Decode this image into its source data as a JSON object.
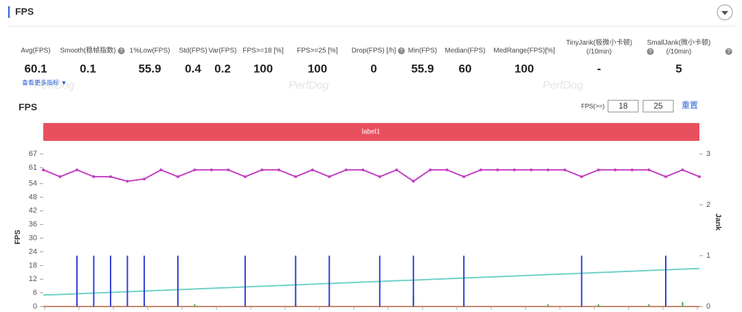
{
  "header": {
    "title": "FPS",
    "watermark": "PerfDog",
    "more_link": "查看更多指标 ▼"
  },
  "metrics": [
    {
      "label": "Avg(FPS)",
      "value": 60.1
    },
    {
      "label": "Smooth(稳帧指数)",
      "value": 0.1,
      "help": "?"
    },
    {
      "label": "1%Low(FPS)",
      "value": 55.9
    },
    {
      "label": "Std(FPS)",
      "value": 0.4
    },
    {
      "label": "Var(FPS)",
      "value": 0.2
    },
    {
      "label": "FPS>=18 [%]",
      "value": 100
    },
    {
      "label": "FPS>=25 [%]",
      "value": 100
    },
    {
      "label": "Drop(FPS) [/h]",
      "value": 0,
      "help": "?"
    },
    {
      "label": "Min(FPS)",
      "value": 55.9
    },
    {
      "label": "Median(FPS)",
      "value": 60
    },
    {
      "label": "MedRange(FPS)[%]",
      "value": 100
    },
    {
      "label": "TinyJank(极微小卡顿)\n(/10min)",
      "value": "-",
      "help": "?"
    },
    {
      "label": "SmallJank(微小卡顿)\n(/10min)",
      "value": 5,
      "help": "?"
    }
  ],
  "chart_data": {
    "type": "line",
    "title": "FPS",
    "threshold_label": "FPS(>=)",
    "thresholds": [
      18,
      25
    ],
    "reset": "重置",
    "band_label": "label1",
    "y_label": "FPS",
    "y2_label": "Jank",
    "ylim": [
      0,
      67
    ],
    "yticks": [
      0,
      6,
      12,
      18,
      24,
      30,
      36,
      42,
      48,
      54,
      61,
      67
    ],
    "y2lim": [
      0,
      3
    ],
    "y2ticks": [
      0,
      1,
      2,
      3
    ],
    "series": [
      {
        "type": "line",
        "markers": true,
        "color": "#c23cc0",
        "values": [
          60,
          57,
          60,
          57,
          57,
          55,
          56,
          60,
          57,
          60,
          60,
          60,
          57,
          60,
          60,
          57,
          60,
          57,
          60,
          60,
          57,
          60,
          55,
          60,
          60,
          57,
          60,
          60,
          60,
          60,
          60,
          60,
          57,
          60,
          60,
          60,
          60,
          57,
          60,
          57
        ]
      },
      {
        "type": "bar",
        "axis": "y2",
        "color": "#2b3fd6",
        "values": [
          0,
          0,
          1,
          1,
          1,
          1,
          1,
          0,
          1,
          0,
          0,
          0,
          1,
          0,
          0,
          1,
          0,
          1,
          0,
          0,
          1,
          0,
          1,
          0,
          0,
          1,
          0,
          0,
          0,
          0,
          0,
          0,
          1,
          0,
          0,
          0,
          0,
          1,
          0,
          0
        ]
      },
      {
        "type": "line",
        "color": "#6fd0c8",
        "values": [
          5,
          5.3,
          5.6,
          5.9,
          6.2,
          6.5,
          6.8,
          7.1,
          7.4,
          7.7,
          8,
          8.3,
          8.6,
          8.9,
          9.2,
          9.5,
          9.8,
          10.1,
          10.4,
          10.7,
          11,
          11.3,
          11.6,
          11.9,
          12.2,
          12.5,
          12.8,
          13.1,
          13.4,
          13.7,
          14,
          14.3,
          14.6,
          14.9,
          15.2,
          15.5,
          15.8,
          16.1,
          16.4,
          16.7
        ]
      },
      {
        "type": "bar",
        "color": "#3cb043",
        "values": [
          0,
          0,
          1,
          0,
          0,
          1,
          2,
          0,
          0,
          1,
          0,
          0,
          0,
          0,
          0,
          1,
          0,
          1,
          0,
          0,
          0,
          0,
          5,
          0,
          0,
          2,
          0,
          0,
          0,
          0,
          1,
          0,
          0,
          1,
          0,
          0,
          1,
          0,
          2,
          0
        ]
      },
      {
        "type": "line",
        "color": "#c8866a",
        "values": [
          0,
          0,
          0,
          0,
          0,
          0,
          0,
          0,
          0,
          0,
          0,
          0,
          0,
          0,
          0,
          0,
          0,
          0,
          0,
          0,
          0,
          0,
          0,
          0,
          0,
          0,
          0,
          0,
          0,
          0,
          0,
          0,
          0,
          0,
          0,
          0,
          0,
          0,
          0,
          0
        ]
      }
    ]
  }
}
